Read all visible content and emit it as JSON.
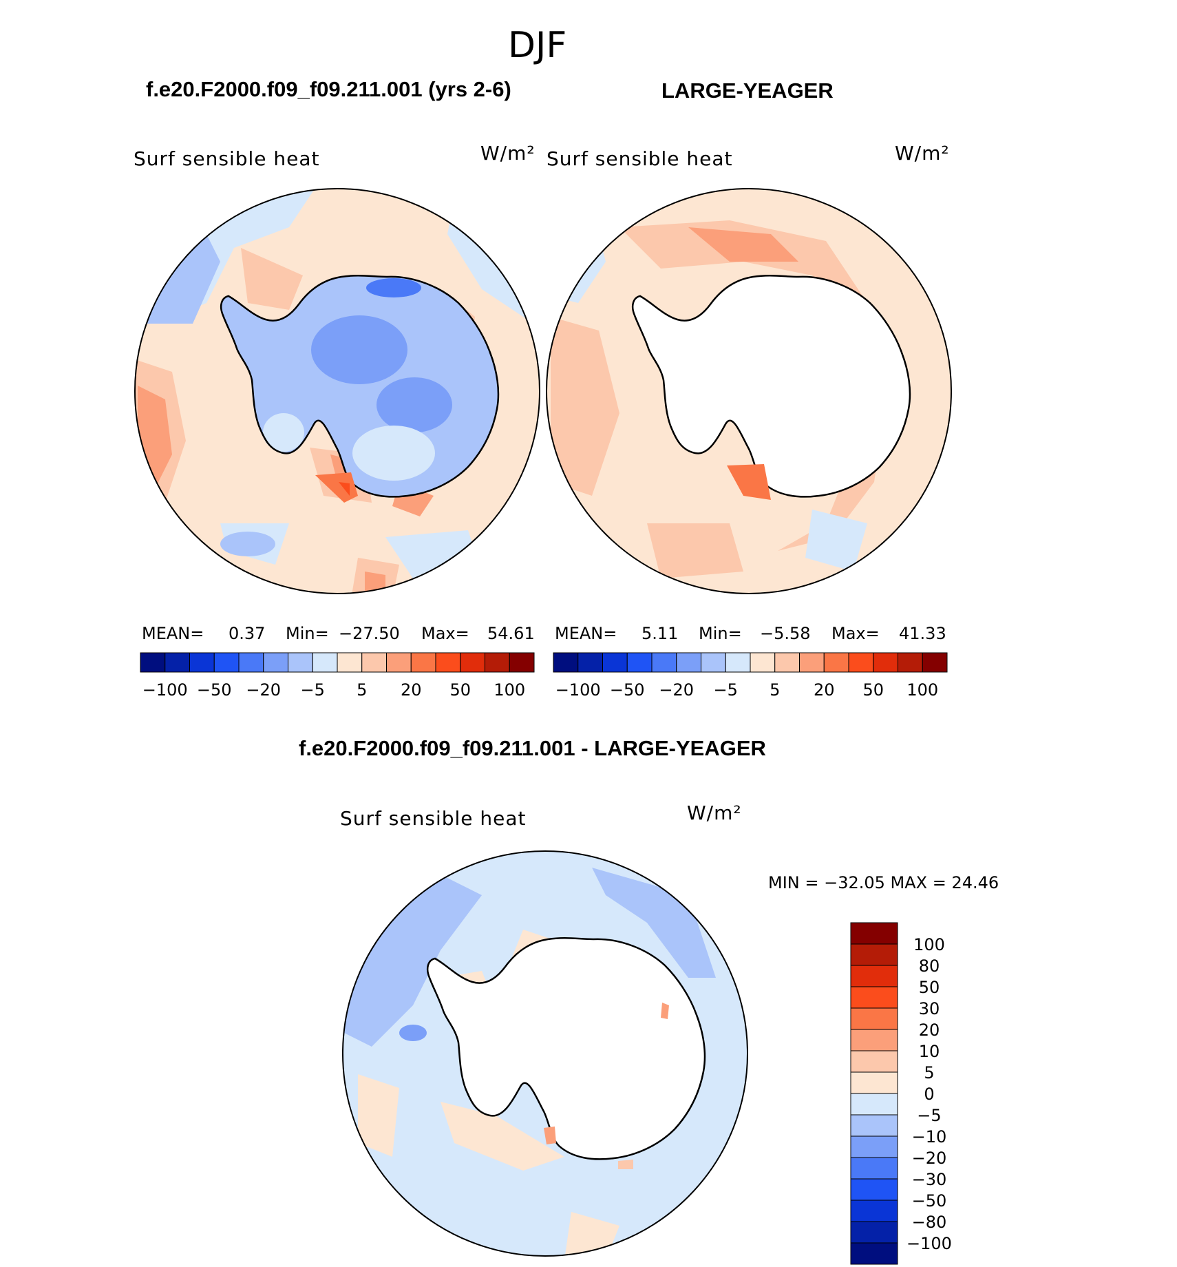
{
  "title": "DJF",
  "panel_left": {
    "case_title": "f.e20.F2000.f09_f09.211.001 (yrs 2-6)",
    "variable": "Surf sensible heat",
    "units": "W/m²",
    "mean_label": "MEAN=",
    "mean_value": "0.37",
    "min_label": "Min=",
    "min_value": "−27.50",
    "max_label": "Max=",
    "max_value": "54.61"
  },
  "panel_right": {
    "case_title": "LARGE-YEAGER",
    "variable": "Surf sensible heat",
    "units": "W/m²",
    "mean_label": "MEAN=",
    "mean_value": "5.11",
    "min_label": "Min=",
    "min_value": "−5.58",
    "max_label": "Max=",
    "max_value": "41.33"
  },
  "panel_diff": {
    "case_title": "f.e20.F2000.f09_f09.211.001 - LARGE-YEAGER",
    "variable": "Surf sensible heat",
    "units": "W/m²",
    "minmax": "MIN = −32.05 MAX =   24.46"
  },
  "colorbar_horizontal": {
    "colors": [
      "#000e7f",
      "#0421a8",
      "#0a35d6",
      "#1f54f5",
      "#4a79f7",
      "#7b9ff8",
      "#aac4fa",
      "#d6e8fb",
      "#fde6d2",
      "#fcc8ac",
      "#fb9f7a",
      "#fa7646",
      "#fb4d1c",
      "#e12d0b",
      "#b41c07",
      "#840000"
    ],
    "tick_labels": [
      "−100",
      "−50",
      "−20",
      "−5",
      "5",
      "20",
      "50",
      "100"
    ]
  },
  "colorbar_vertical": {
    "colors": [
      "#000e7f",
      "#0421a8",
      "#0a35d6",
      "#1f54f5",
      "#4a79f7",
      "#7b9ff8",
      "#aac4fa",
      "#d6e8fb",
      "#fde6d2",
      "#fcc8ac",
      "#fb9f7a",
      "#fa7646",
      "#fb4d1c",
      "#e12d0b",
      "#b41c07",
      "#840000"
    ],
    "tick_labels": [
      "−100",
      "−80",
      "−50",
      "−30",
      "−20",
      "−10",
      "−5",
      "0",
      "5",
      "10",
      "20",
      "30",
      "50",
      "80",
      "100"
    ]
  },
  "palette": {
    "land": "#ffffff",
    "coast": "#000000",
    "light_blue": "#d6e8fb",
    "blue": "#aac4fa",
    "mid_blue": "#7b9ff8",
    "light_red": "#fde6d2",
    "red": "#fcc8ac",
    "mid_red": "#fb9f7a",
    "strong_red": "#fa7646"
  }
}
